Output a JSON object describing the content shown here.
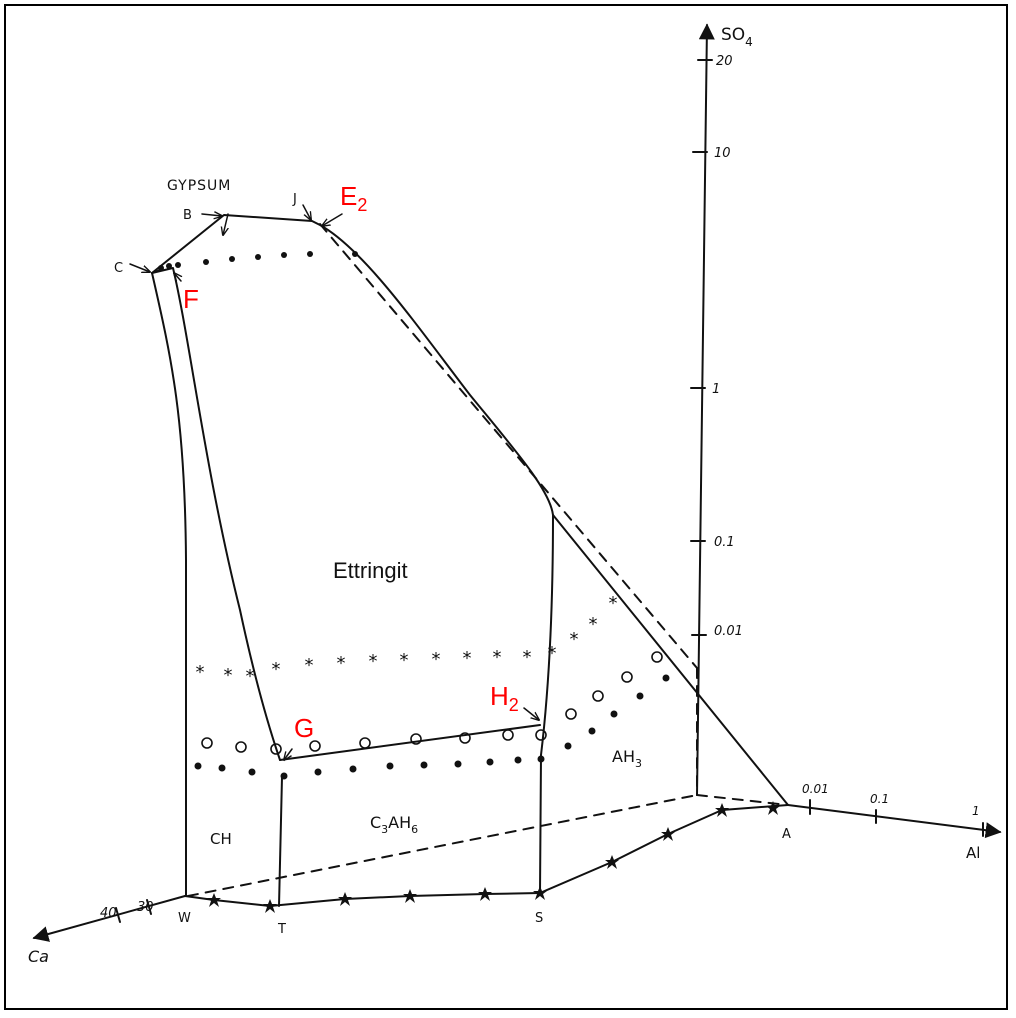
{
  "colors": {
    "ink": "#111111",
    "highlight": "#ff0000"
  },
  "axes": {
    "so4": {
      "name": "SO",
      "sub": "4",
      "ticks": [
        "20",
        "10",
        "1",
        "0.1",
        "0.01"
      ]
    },
    "al": {
      "name": "Al",
      "ticks": [
        "0.01",
        "0.1",
        "1"
      ]
    },
    "ca": {
      "name": "Ca",
      "ticks": [
        "40",
        "30"
      ]
    }
  },
  "points": {
    "A": "A",
    "B": "B",
    "C": "C",
    "J": "J",
    "S": "S",
    "T": "T",
    "W": "W"
  },
  "red_labels": {
    "E": "E",
    "E_sub": "2",
    "F": "F",
    "G": "G",
    "H": "H",
    "H_sub": "2"
  },
  "phases": {
    "gypsum": "GYPSUM",
    "ettringit": "Ettringit",
    "ch": "CH",
    "c3ah6": {
      "a": "C",
      "b": "3",
      "c": "AH",
      "d": "6"
    },
    "ah3": {
      "a": "AH",
      "b": "3"
    }
  }
}
